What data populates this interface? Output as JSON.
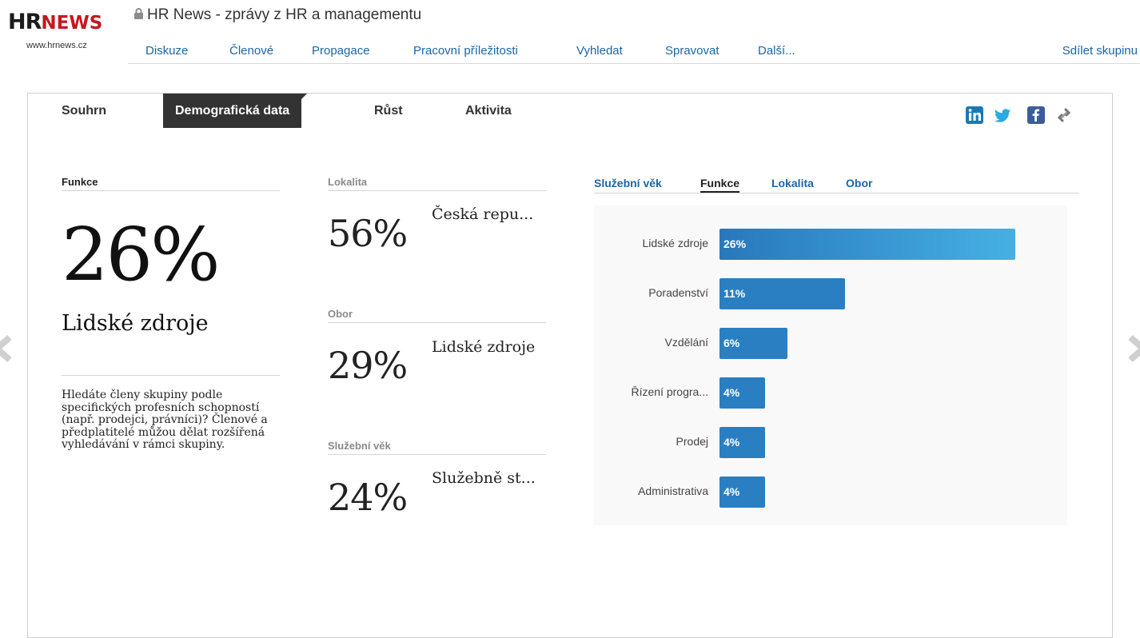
{
  "header": {
    "logo_hr": "HR",
    "logo_news": "NEWS",
    "logo_url": "www.hrnews.cz",
    "group_title": "HR News - zprávy z HR a managementu",
    "nav": [
      "Diskuze",
      "Členové",
      "Propagace",
      "Pracovní příležitosti",
      "Vyhledat",
      "Spravovat",
      "Další..."
    ],
    "share_label": "Sdílet skupinu"
  },
  "tabs": [
    "Souhrn",
    "Demografická data",
    "Růst",
    "Aktivita"
  ],
  "active_tab": "Demografická data",
  "social_icons": [
    "linkedin-icon",
    "twitter-icon",
    "facebook-icon",
    "link-icon"
  ],
  "left": {
    "heading": "Funkce",
    "percent": "26%",
    "name": "Lidské zdroje",
    "help": "Hledáte členy skupiny podle specifických profesních schopností (např. prodejci, právníci)? Členové a předplatitelé můžou dělat rozšířená vyhledávání v rámci skupiny."
  },
  "middle": [
    {
      "heading": "Lokalita",
      "percent": "56%",
      "name": "Česká repu..."
    },
    {
      "heading": "Obor",
      "percent": "29%",
      "name": "Lidské zdroje"
    },
    {
      "heading": "Služební věk",
      "percent": "24%",
      "name": "Služebně st..."
    }
  ],
  "subtabs": [
    "Služební věk",
    "Funkce",
    "Lokalita",
    "Obor"
  ],
  "active_subtab": "Funkce",
  "colors": {
    "link": "#1a66a8",
    "bar": "#2a7fc2",
    "bar_highlight": "#46b0e4",
    "logo_red": "#c8161e"
  },
  "chart_data": {
    "type": "bar",
    "orientation": "horizontal",
    "categories": [
      "Lidské zdroje",
      "Poradenství",
      "Vzdělání",
      "Řízení progra...",
      "Prodej",
      "Administrativa"
    ],
    "values": [
      26,
      11,
      6,
      4,
      4,
      4
    ],
    "labels": [
      "26%",
      "11%",
      "6%",
      "4%",
      "4%",
      "4%"
    ],
    "unit": "%"
  }
}
